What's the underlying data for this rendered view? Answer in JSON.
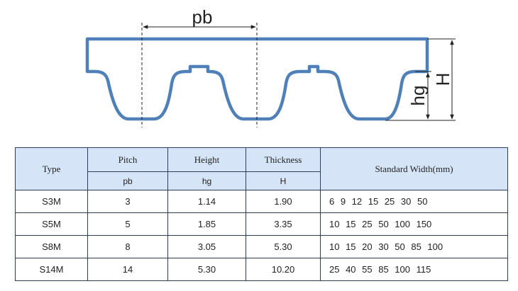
{
  "diagram": {
    "pitch_label": "pb",
    "tooth_height_label": "hg",
    "thickness_label": "H",
    "belt_color": "#4f81b8"
  },
  "table": {
    "headers": {
      "type": "Type",
      "pitch": "Pitch",
      "pitch_sub": "pb",
      "height": "Height",
      "height_sub": "hg",
      "thickness": "Thickness",
      "thickness_sub": "H",
      "width": "Standard Width(mm)"
    },
    "rows": [
      {
        "type": "S3M",
        "pitch": "3",
        "height": "1.14",
        "thickness": "1.90",
        "widths": "6 9 12 15 25 30 50"
      },
      {
        "type": "S5M",
        "pitch": "5",
        "height": "1.85",
        "thickness": "3.35",
        "widths": "10 15 25 50 100 150"
      },
      {
        "type": "S8M",
        "pitch": "8",
        "height": "3.05",
        "thickness": "5.30",
        "widths": "10 15 20 30 50 85 100"
      },
      {
        "type": "S14M",
        "pitch": "14",
        "height": "5.30",
        "thickness": "10.20",
        "widths": "25 40 55 85 100 115"
      }
    ]
  }
}
